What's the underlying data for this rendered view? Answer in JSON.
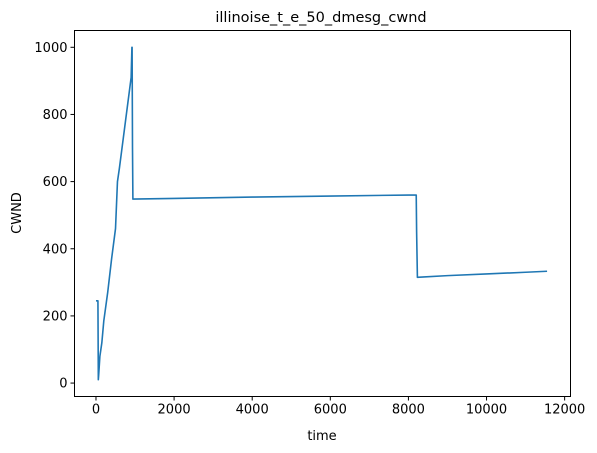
{
  "chart_data": {
    "type": "line",
    "title": "illinoise_t_e_50_dmesg_cwnd",
    "xlabel": "time",
    "ylabel": "CWND",
    "xlim": [
      -550,
      12150
    ],
    "ylim": [
      -40,
      1050
    ],
    "xticks": [
      0,
      2000,
      4000,
      6000,
      8000,
      10000,
      12000
    ],
    "xtick_labels": [
      "0",
      "2000",
      "4000",
      "6000",
      "8000",
      "10000",
      "12000"
    ],
    "yticks": [
      0,
      200,
      400,
      600,
      800,
      1000
    ],
    "ytick_labels": [
      "0",
      "200",
      "400",
      "600",
      "800",
      "1000"
    ],
    "grid": false,
    "series": [
      {
        "color": "#1f77b4",
        "x": [
          0,
          50,
          60,
          70,
          100,
          150,
          200,
          300,
          400,
          500,
          550,
          600,
          700,
          800,
          900,
          920,
          925,
          935,
          945,
          955,
          2000,
          4000,
          6000,
          8000,
          8200,
          8210,
          8230,
          8400,
          9000,
          10000,
          11000,
          11550
        ],
        "y": [
          245,
          245,
          10,
          25,
          80,
          120,
          185,
          270,
          370,
          460,
          600,
          640,
          730,
          820,
          910,
          1000,
          1000,
          700,
          548,
          548,
          550,
          554,
          557,
          560,
          560,
          450,
          315,
          316,
          320,
          325,
          330,
          333
        ]
      }
    ]
  }
}
